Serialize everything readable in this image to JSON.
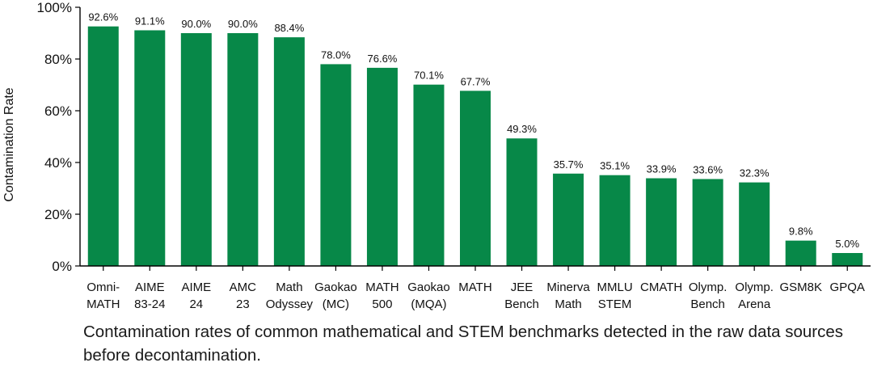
{
  "chart_data": {
    "type": "bar",
    "categories": [
      [
        "Omni-",
        "MATH"
      ],
      [
        "AIME",
        "83-24"
      ],
      [
        "AIME",
        "24"
      ],
      [
        "AMC",
        "23"
      ],
      [
        "Math",
        "Odyssey"
      ],
      [
        "Gaokao",
        "(MC)"
      ],
      [
        "MATH",
        "500"
      ],
      [
        "Gaokao",
        "(MQA)"
      ],
      [
        "MATH"
      ],
      [
        "JEE",
        "Bench"
      ],
      [
        "Minerva",
        "Math"
      ],
      [
        "MMLU",
        "STEM"
      ],
      [
        "CMATH"
      ],
      [
        "Olymp.",
        "Bench"
      ],
      [
        "Olymp.",
        "Arena"
      ],
      [
        "GSM8K"
      ],
      [
        "GPQA"
      ]
    ],
    "values": [
      92.6,
      91.1,
      90.0,
      90.0,
      88.4,
      78.0,
      76.6,
      70.1,
      67.7,
      49.3,
      35.7,
      35.1,
      33.9,
      33.6,
      32.3,
      9.8,
      5.0
    ],
    "data_labels": [
      "92.6%",
      "91.1%",
      "90.0%",
      "90.0%",
      "88.4%",
      "78.0%",
      "76.6%",
      "70.1%",
      "67.7%",
      "49.3%",
      "35.7%",
      "35.1%",
      "33.9%",
      "33.6%",
      "32.3%",
      "9.8%",
      "5.0%"
    ],
    "ylabel": "Contamination Rate",
    "ylim": [
      0,
      100
    ],
    "yticks": [
      0,
      20,
      40,
      60,
      80,
      100
    ],
    "ytick_labels": [
      "0%",
      "20%",
      "40%",
      "60%",
      "80%",
      "100%"
    ],
    "grid": false,
    "legend": "none",
    "bar_color": "#078848"
  },
  "caption": "Contamination rates of common mathematical and STEM benchmarks detected in the raw data sources before decontamination."
}
